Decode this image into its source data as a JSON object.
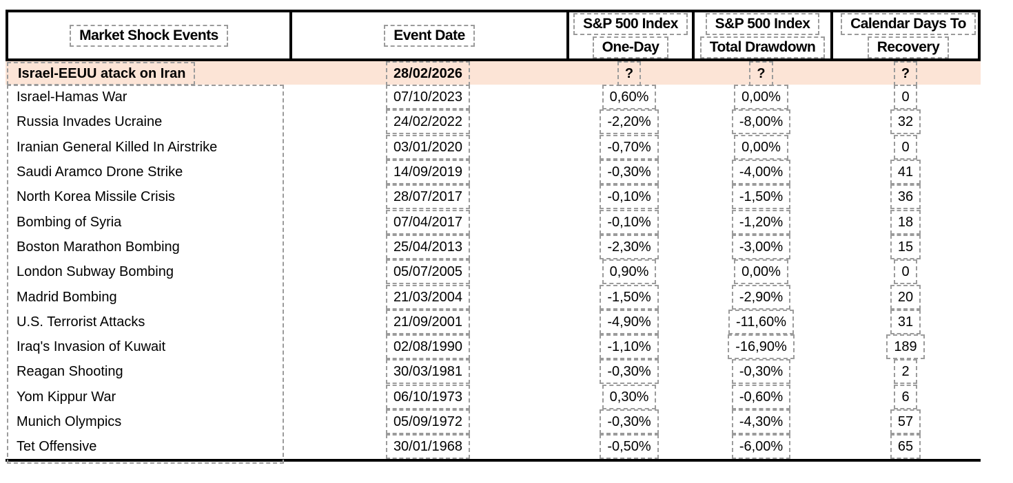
{
  "colors": {
    "highlight_bg": "#FCE4D6",
    "table_border": "#000000",
    "dash_border": "#9B9B9B",
    "text": "#000000"
  },
  "header": {
    "col1": {
      "line1": "Market Shock Events"
    },
    "col2": {
      "line1": "Event Date"
    },
    "col3": {
      "line1": "S&P 500 Index",
      "line2": "One-Day"
    },
    "col4": {
      "line1": "S&P 500 Index",
      "line2": "Total Drawdown"
    },
    "col5": {
      "line1": "Calendar Days To",
      "line2": "Recovery"
    }
  },
  "highlight_row": {
    "event": "Israel-EEUU atack on Iran",
    "date": "28/02/2026",
    "one_day": "?",
    "drawdown": "?",
    "days": "?"
  },
  "rows": [
    {
      "event": "Israel-Hamas War",
      "date": "07/10/2023",
      "one_day": "0,60%",
      "drawdown": "0,00%",
      "days": "0"
    },
    {
      "event": "Russia Invades Ucraine",
      "date": "24/02/2022",
      "one_day": "-2,20%",
      "drawdown": "-8,00%",
      "days": "32"
    },
    {
      "event": "Iranian General Killed In Airstrike",
      "date": "03/01/2020",
      "one_day": "-0,70%",
      "drawdown": "0,00%",
      "days": "0"
    },
    {
      "event": "Saudi Aramco Drone Strike",
      "date": "14/09/2019",
      "one_day": "-0,30%",
      "drawdown": "-4,00%",
      "days": "41"
    },
    {
      "event": "North Korea Missile Crisis",
      "date": "28/07/2017",
      "one_day": "-0,10%",
      "drawdown": "-1,50%",
      "days": "36"
    },
    {
      "event": "Bombing of Syria",
      "date": "07/04/2017",
      "one_day": "-0,10%",
      "drawdown": "-1,20%",
      "days": "18"
    },
    {
      "event": "Boston Marathon Bombing",
      "date": "25/04/2013",
      "one_day": "-2,30%",
      "drawdown": "-3,00%",
      "days": "15"
    },
    {
      "event": "London Subway Bombing",
      "date": "05/07/2005",
      "one_day": "0,90%",
      "drawdown": "0,00%",
      "days": "0"
    },
    {
      "event": "Madrid Bombing",
      "date": "21/03/2004",
      "one_day": "-1,50%",
      "drawdown": "-2,90%",
      "days": "20"
    },
    {
      "event": "U.S. Terrorist Attacks",
      "date": "21/09/2001",
      "one_day": "-4,90%",
      "drawdown": "-11,60%",
      "days": "31"
    },
    {
      "event": "Iraq's Invasion of Kuwait",
      "date": "02/08/1990",
      "one_day": "-1,10%",
      "drawdown": "-16,90%",
      "days": "189"
    },
    {
      "event": "Reagan Shooting",
      "date": "30/03/1981",
      "one_day": "-0,30%",
      "drawdown": "-0,30%",
      "days": "2"
    },
    {
      "event": "Yom Kippur War",
      "date": "06/10/1973",
      "one_day": "0,30%",
      "drawdown": "-0,60%",
      "days": "6"
    },
    {
      "event": "Munich Olympics",
      "date": "05/09/1972",
      "one_day": "-0,30%",
      "drawdown": "-4,30%",
      "days": "57"
    },
    {
      "event": "Tet Offensive",
      "date": "30/01/1968",
      "one_day": "-0,50%",
      "drawdown": "-6,00%",
      "days": "65"
    }
  ]
}
